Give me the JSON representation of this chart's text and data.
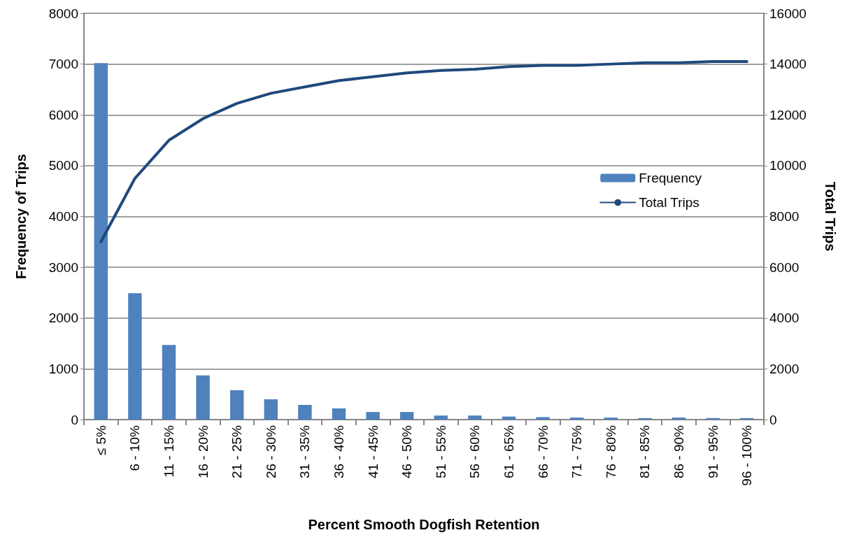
{
  "chart_data": {
    "type": "bar",
    "xlabel": "Percent Smooth Dogfish Retention",
    "ylabel": "Frequency of Trips",
    "y2label": "Total Trips",
    "categories": [
      "≤ 5%",
      "6 - 10%",
      "11 - 15%",
      "16 - 20%",
      "21 - 25%",
      "26 - 30%",
      "31 - 35%",
      "36 - 40%",
      "41 - 45%",
      "46 - 50%",
      "51 - 55%",
      "56 - 60%",
      "61 - 65%",
      "66 - 70%",
      "71 - 75%",
      "76 - 80%",
      "81 - 85%",
      "86 - 90%",
      "91 - 95%",
      "96 - 100%"
    ],
    "series": [
      {
        "name": "Frequency",
        "color": "#4f81bd",
        "values": [
          7020,
          2490,
          1470,
          870,
          580,
          400,
          290,
          220,
          150,
          150,
          80,
          80,
          60,
          50,
          40,
          40,
          30,
          40,
          30,
          30
        ]
      },
      {
        "name": "Total Trips",
        "type": "line",
        "axis": "y2",
        "color": "#1f497d",
        "values": [
          7000,
          9500,
          11000,
          11850,
          12450,
          12850,
          13100,
          13350,
          13500,
          13650,
          13750,
          13800,
          13900,
          13950,
          13950,
          14000,
          14050,
          14050,
          14100,
          14100
        ]
      }
    ],
    "ylim": [
      0,
      8000
    ],
    "yticks": [
      0,
      1000,
      2000,
      3000,
      4000,
      5000,
      6000,
      7000,
      8000
    ],
    "y2lim": [
      0,
      16000
    ],
    "y2ticks": [
      0,
      2000,
      4000,
      6000,
      8000,
      10000,
      12000,
      14000,
      16000
    ],
    "grid": "y",
    "legend": "right",
    "marker": "none"
  }
}
